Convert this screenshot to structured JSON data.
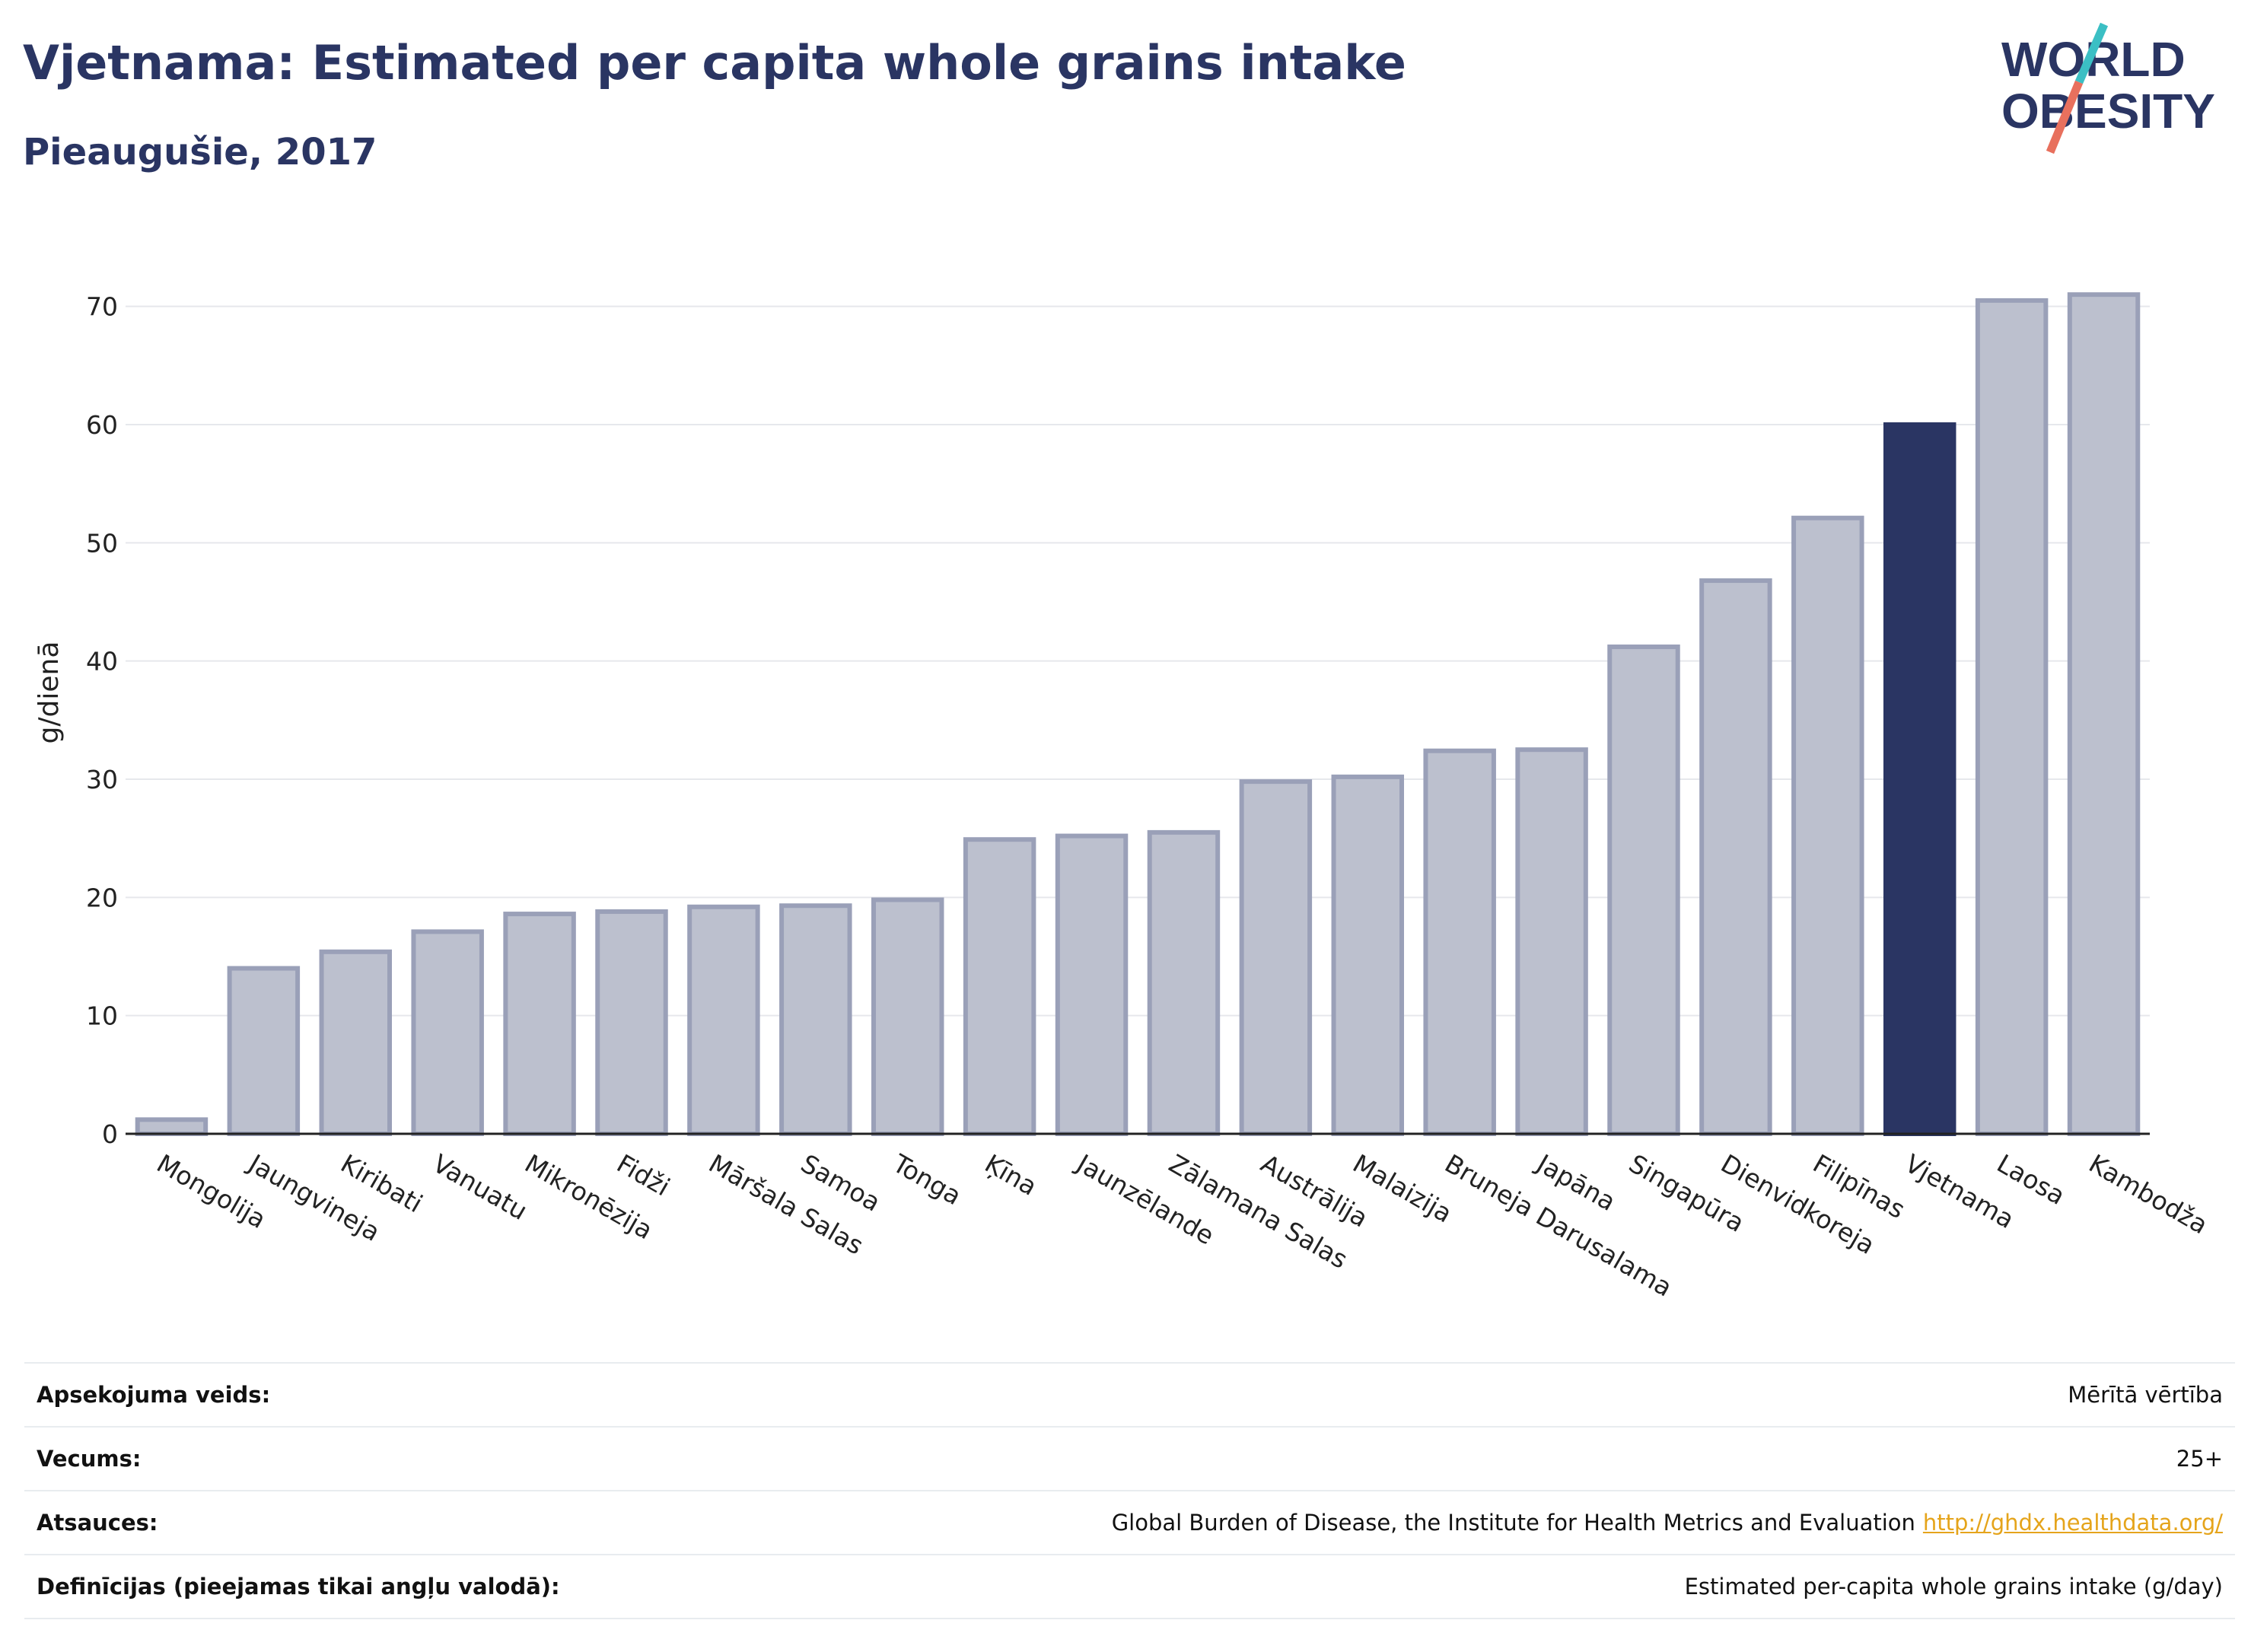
{
  "header": {
    "title": "Vjetnama: Estimated per capita whole grains intake",
    "subtitle": "Pieaugušie, 2017"
  },
  "logo": {
    "line1": "WORLD",
    "line2": "OBESITY"
  },
  "colors": {
    "highlight": "#2a3563",
    "bar_fill": "#bcc0ce",
    "bar_stroke": "#9aa0b8",
    "logo_teal": "#3bbfc4",
    "logo_coral": "#e8705d"
  },
  "chart_data": {
    "type": "bar",
    "ylabel": "g/dienā",
    "ylim": [
      0,
      75
    ],
    "yticks": [
      0,
      10,
      20,
      30,
      40,
      50,
      60,
      70
    ],
    "grid": true,
    "highlight": "Vjetnama",
    "categories": [
      "Mongolija",
      "Jaungvineja",
      "Kiribati",
      "Vanuatu",
      "Mikronēzija",
      "Fidži",
      "Māršala Salas",
      "Samoa",
      "Tonga",
      "Ķīna",
      "Jaunzēlande",
      "Zālamana Salas",
      "Austrālija",
      "Malaizija",
      "Bruneja Darusalama",
      "Japāna",
      "Singapūra",
      "Dienvidkoreja",
      "Filipīnas",
      "Vjetnama",
      "Laosa",
      "Kambodža"
    ],
    "values": [
      1.2,
      14.0,
      15.4,
      17.1,
      18.6,
      18.8,
      19.2,
      19.3,
      19.8,
      24.9,
      25.2,
      25.5,
      29.8,
      30.2,
      32.4,
      32.5,
      41.2,
      46.8,
      52.1,
      60.0,
      70.5,
      71.0
    ]
  },
  "meta": [
    {
      "key": "Apsekojuma veids:",
      "value": "Mērītā vērtība"
    },
    {
      "key": "Vecums:",
      "value": "25+"
    },
    {
      "key": "Atsauces:",
      "value": "Global Burden of Disease, the Institute for Health Metrics and Evaluation",
      "link": "http://ghdx.healthdata.org/"
    },
    {
      "key": "Definīcijas (pieejamas tikai angļu valodā):",
      "value": "Estimated per-capita whole grains intake (g/day)"
    }
  ]
}
